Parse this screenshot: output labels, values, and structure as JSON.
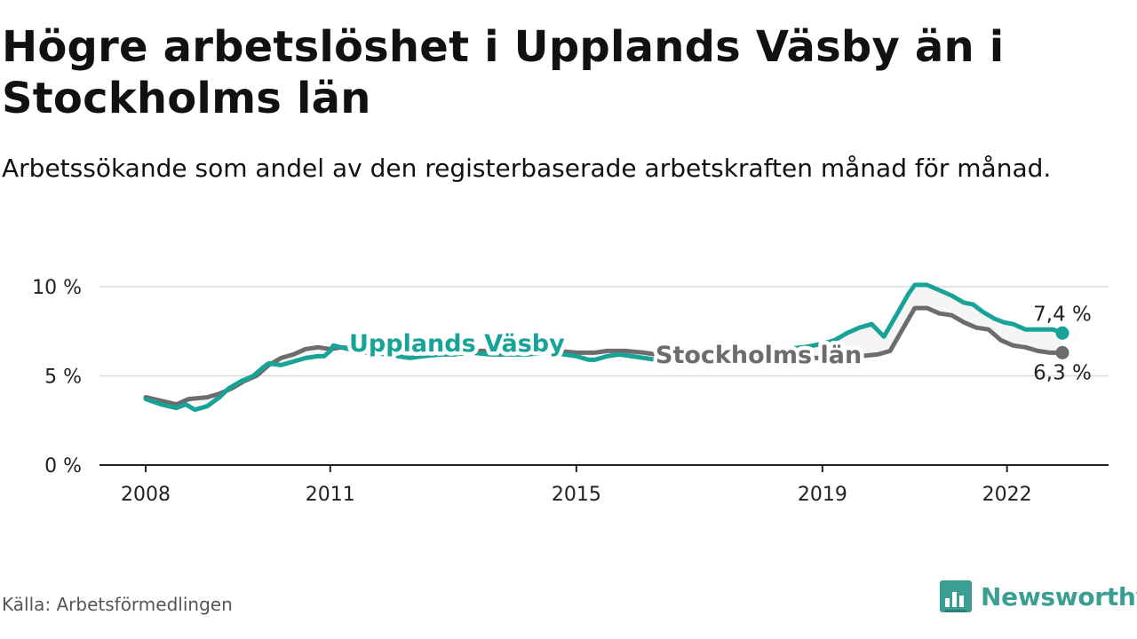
{
  "title": "Högre arbetslöshet i Upplands Väsby än i Stockholms län",
  "subtitle": "Arbetssökande som andel av den registerbaserade arbetskraften månad för månad.",
  "source": "Källa: Arbetsförmedlingen",
  "brand": "Newsworthy",
  "colors": {
    "vasby": "#17a398",
    "lan": "#6d6b6e",
    "grid": "#d9d9d9",
    "axis": "#222222",
    "brand": "#3a9f92"
  },
  "chart_data": {
    "type": "line",
    "title": "Högre arbetslöshet i Upplands Väsby än i Stockholms län",
    "xlabel": "",
    "ylabel": "",
    "xlim": [
      2008,
      2022.9
    ],
    "ylim": [
      0,
      10
    ],
    "x_ticks": [
      2008,
      2011,
      2015,
      2019,
      2022
    ],
    "x_tick_labels": [
      "2008",
      "2011",
      "2015",
      "2019",
      "2022"
    ],
    "y_ticks": [
      0,
      5,
      10
    ],
    "y_tick_labels": [
      "0 %",
      "5 %",
      "10 %"
    ],
    "grid": true,
    "series": [
      {
        "name": "Upplands Väsby",
        "end_label": "7,4 %",
        "points": [
          [
            2008.0,
            3.7
          ],
          [
            2008.25,
            3.4
          ],
          [
            2008.5,
            3.2
          ],
          [
            2008.65,
            3.4
          ],
          [
            2008.8,
            3.1
          ],
          [
            2009.0,
            3.3
          ],
          [
            2009.2,
            3.8
          ],
          [
            2009.35,
            4.3
          ],
          [
            2009.55,
            4.7
          ],
          [
            2009.75,
            5.0
          ],
          [
            2009.92,
            5.5
          ],
          [
            2010.0,
            5.7
          ],
          [
            2010.2,
            5.6
          ],
          [
            2010.4,
            5.8
          ],
          [
            2010.6,
            6.0
          ],
          [
            2010.8,
            6.1
          ],
          [
            2010.9,
            6.1
          ],
          [
            2011.0,
            6.4
          ],
          [
            2011.05,
            6.7
          ],
          [
            2011.3,
            6.5
          ],
          [
            2011.5,
            6.3
          ],
          [
            2011.7,
            6.3
          ],
          [
            2011.9,
            6.2
          ],
          [
            2012.0,
            6.3
          ],
          [
            2012.1,
            6.1
          ],
          [
            2012.3,
            6.0
          ],
          [
            2012.5,
            6.1
          ],
          [
            2012.8,
            6.2
          ],
          [
            2013.0,
            6.2
          ],
          [
            2013.3,
            6.3
          ],
          [
            2013.6,
            6.2
          ],
          [
            2013.9,
            6.2
          ],
          [
            2014.2,
            6.2
          ],
          [
            2014.5,
            6.3
          ],
          [
            2014.8,
            6.2
          ],
          [
            2015.0,
            6.1
          ],
          [
            2015.2,
            5.9
          ],
          [
            2015.3,
            5.9
          ],
          [
            2015.5,
            6.1
          ],
          [
            2015.7,
            6.2
          ],
          [
            2015.9,
            6.1
          ],
          [
            2016.1,
            6.0
          ],
          [
            2016.3,
            5.9
          ],
          [
            2016.6,
            5.9
          ],
          [
            2016.9,
            6.0
          ],
          [
            2017.2,
            6.1
          ],
          [
            2017.5,
            6.2
          ],
          [
            2017.8,
            6.3
          ],
          [
            2018.1,
            6.4
          ],
          [
            2018.4,
            6.5
          ],
          [
            2018.7,
            6.6
          ],
          [
            2019.0,
            6.8
          ],
          [
            2019.2,
            7.0
          ],
          [
            2019.4,
            7.4
          ],
          [
            2019.6,
            7.7
          ],
          [
            2019.8,
            7.9
          ],
          [
            2020.0,
            7.2
          ],
          [
            2020.2,
            8.4
          ],
          [
            2020.4,
            9.6
          ],
          [
            2020.5,
            10.1
          ],
          [
            2020.7,
            10.1
          ],
          [
            2020.9,
            9.8
          ],
          [
            2021.1,
            9.5
          ],
          [
            2021.3,
            9.1
          ],
          [
            2021.45,
            9.0
          ],
          [
            2021.6,
            8.6
          ],
          [
            2021.8,
            8.2
          ],
          [
            2021.95,
            8.0
          ],
          [
            2022.1,
            7.9
          ],
          [
            2022.3,
            7.6
          ],
          [
            2022.5,
            7.6
          ],
          [
            2022.75,
            7.6
          ],
          [
            2022.9,
            7.4
          ]
        ]
      },
      {
        "name": "Stockholms län",
        "end_label": "6,3 %",
        "points": [
          [
            2008.0,
            3.8
          ],
          [
            2008.25,
            3.6
          ],
          [
            2008.5,
            3.4
          ],
          [
            2008.7,
            3.7
          ],
          [
            2009.0,
            3.8
          ],
          [
            2009.2,
            4.0
          ],
          [
            2009.4,
            4.3
          ],
          [
            2009.6,
            4.7
          ],
          [
            2009.8,
            5.0
          ],
          [
            2010.0,
            5.6
          ],
          [
            2010.2,
            6.0
          ],
          [
            2010.4,
            6.2
          ],
          [
            2010.6,
            6.5
          ],
          [
            2010.8,
            6.6
          ],
          [
            2011.0,
            6.5
          ],
          [
            2011.2,
            6.6
          ],
          [
            2011.4,
            6.5
          ],
          [
            2011.6,
            6.4
          ],
          [
            2011.8,
            6.5
          ],
          [
            2012.0,
            6.4
          ],
          [
            2012.3,
            6.4
          ],
          [
            2012.6,
            6.3
          ],
          [
            2012.9,
            6.4
          ],
          [
            2013.2,
            6.4
          ],
          [
            2013.5,
            6.4
          ],
          [
            2013.8,
            6.4
          ],
          [
            2014.1,
            6.3
          ],
          [
            2014.4,
            6.4
          ],
          [
            2014.7,
            6.4
          ],
          [
            2015.0,
            6.3
          ],
          [
            2015.3,
            6.3
          ],
          [
            2015.5,
            6.4
          ],
          [
            2015.8,
            6.4
          ],
          [
            2016.1,
            6.3
          ],
          [
            2016.3,
            6.2
          ],
          [
            2016.6,
            6.1
          ],
          [
            2016.9,
            6.1
          ],
          [
            2017.2,
            6.0
          ],
          [
            2017.5,
            6.0
          ],
          [
            2017.8,
            6.0
          ],
          [
            2018.1,
            6.0
          ],
          [
            2018.4,
            5.9
          ],
          [
            2018.7,
            6.0
          ],
          [
            2019.0,
            6.0
          ],
          [
            2019.3,
            6.1
          ],
          [
            2019.6,
            6.1
          ],
          [
            2019.9,
            6.2
          ],
          [
            2020.1,
            6.4
          ],
          [
            2020.3,
            7.6
          ],
          [
            2020.5,
            8.8
          ],
          [
            2020.7,
            8.8
          ],
          [
            2020.9,
            8.5
          ],
          [
            2021.1,
            8.4
          ],
          [
            2021.3,
            8.0
          ],
          [
            2021.5,
            7.7
          ],
          [
            2021.7,
            7.6
          ],
          [
            2021.9,
            7.0
          ],
          [
            2022.1,
            6.7
          ],
          [
            2022.3,
            6.6
          ],
          [
            2022.5,
            6.4
          ],
          [
            2022.7,
            6.3
          ],
          [
            2022.9,
            6.3
          ]
        ]
      }
    ]
  }
}
